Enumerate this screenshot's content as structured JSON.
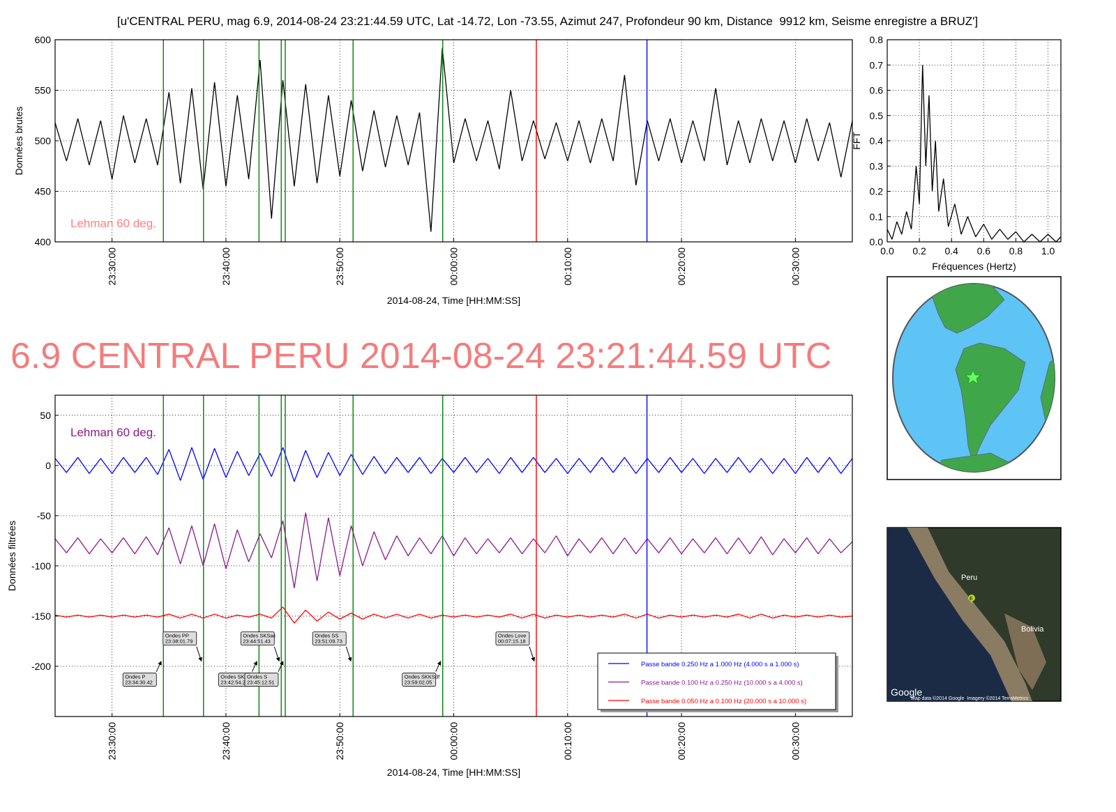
{
  "headline": "6.9 CENTRAL PERU 2014-08-24 23:21:44.59 UTC",
  "chart_data": [
    {
      "type": "line",
      "title": "[u'CENTRAL PERU, mag 6.9, 2014-08-24 23:21:44.59 UTC, Lat -14.72, Lon -73.55, Azimut 247, Profondeur 90 km, Distance  9912 km, Seisme enregistre a BRUZ']",
      "x_label": "2014-08-24, Time [HH:MM:SS]",
      "y_label": "Données brutes",
      "annotation": "Lehman 60 deg.",
      "annotation_color": "#ff8080",
      "x": [
        "23:25:00",
        "23:26:00",
        "23:27:00",
        "23:28:00",
        "23:29:00",
        "23:30:00",
        "23:31:00",
        "23:32:00",
        "23:33:00",
        "23:34:00",
        "23:35:00",
        "23:36:00",
        "23:37:00",
        "23:38:00",
        "23:39:00",
        "23:40:00",
        "23:41:00",
        "23:42:00",
        "23:43:00",
        "23:44:00",
        "23:45:00",
        "23:46:00",
        "23:47:00",
        "23:48:00",
        "23:49:00",
        "23:50:00",
        "23:51:00",
        "23:52:00",
        "23:53:00",
        "23:54:00",
        "23:55:00",
        "23:56:00",
        "23:57:00",
        "23:58:00",
        "23:59:00",
        "00:00:00",
        "00:01:00",
        "00:02:00",
        "00:03:00",
        "00:04:00",
        "00:05:00",
        "00:06:00",
        "00:07:00",
        "00:08:00",
        "00:09:00",
        "00:10:00",
        "00:11:00",
        "00:12:00",
        "00:13:00",
        "00:14:00",
        "00:15:00",
        "00:16:00",
        "00:17:00",
        "00:18:00",
        "00:19:00",
        "00:20:00",
        "00:21:00",
        "00:22:00",
        "00:23:00",
        "00:24:00",
        "00:25:00",
        "00:26:00",
        "00:27:00",
        "00:28:00",
        "00:29:00",
        "00:30:00",
        "00:31:00",
        "00:32:00",
        "00:33:00",
        "00:34:00",
        "00:35:00"
      ],
      "values": [
        518,
        480,
        522,
        476,
        520,
        462,
        525,
        478,
        522,
        476,
        548,
        458,
        552,
        452,
        558,
        455,
        545,
        462,
        580,
        423,
        560,
        455,
        556,
        458,
        545,
        465,
        540,
        470,
        530,
        474,
        525,
        476,
        528,
        410,
        592,
        478,
        522,
        480,
        520,
        472,
        550,
        480,
        520,
        482,
        518,
        480,
        520,
        478,
        522,
        480,
        565,
        456,
        520,
        480,
        522,
        478,
        520,
        480,
        552,
        476,
        520,
        478,
        522,
        480,
        520,
        478,
        522,
        480,
        518,
        464,
        520
      ],
      "color": "#000000",
      "xlim": [
        "23:25:00",
        "00:35:00"
      ],
      "xticks": [
        "23:30:00",
        "23:40:00",
        "23:50:00",
        "00:00:00",
        "00:10:00",
        "00:20:00",
        "00:30:00"
      ],
      "ylim": [
        400,
        600
      ],
      "yticks": [
        400,
        450,
        500,
        550,
        600
      ],
      "grid": true,
      "phase_lines": [
        {
          "time": "23:34:30.42",
          "color": "#008000"
        },
        {
          "time": "23:38:01.79",
          "color": "#008000"
        },
        {
          "time": "23:42:54.29",
          "color": "#008000"
        },
        {
          "time": "23:44:51.43",
          "color": "#008000"
        },
        {
          "time": "23:45:12.51",
          "color": "#008000"
        },
        {
          "time": "23:51:09.73",
          "color": "#008000"
        },
        {
          "time": "23:59:02.05",
          "color": "#008000"
        },
        {
          "time": "00:07:15.18",
          "color": "#ff0000"
        },
        {
          "time": "00:16:58",
          "color": "#0000ff"
        }
      ]
    },
    {
      "type": "line",
      "x_label": "Fréquences (Hertz)",
      "y_label": "FFT",
      "x": [
        0,
        0.03,
        0.06,
        0.09,
        0.12,
        0.15,
        0.18,
        0.2,
        0.22,
        0.24,
        0.26,
        0.28,
        0.3,
        0.32,
        0.35,
        0.38,
        0.42,
        0.46,
        0.5,
        0.55,
        0.6,
        0.65,
        0.7,
        0.75,
        0.8,
        0.85,
        0.9,
        0.95,
        1.0,
        1.05,
        1.08
      ],
      "values": [
        0.05,
        0.01,
        0.08,
        0.03,
        0.12,
        0.05,
        0.3,
        0.15,
        0.7,
        0.3,
        0.58,
        0.2,
        0.4,
        0.12,
        0.25,
        0.06,
        0.15,
        0.03,
        0.1,
        0.02,
        0.07,
        0.01,
        0.05,
        0.01,
        0.04,
        0.0,
        0.03,
        0.0,
        0.03,
        0.0,
        0.02
      ],
      "color": "#000000",
      "xlim": [
        0,
        1.08
      ],
      "xticks": [
        {
          "value": 0,
          "label": "0.0"
        },
        0.2,
        0.4,
        0.6,
        0.8,
        {
          "value": 1,
          "label": "1.0"
        }
      ],
      "ylim": [
        0,
        0.8
      ],
      "yticks": [
        {
          "value": 0,
          "label": "0.0"
        },
        0.1,
        0.2,
        0.3,
        0.4,
        0.5,
        0.6,
        0.7,
        0.8
      ],
      "grid": true
    },
    {
      "type": "line",
      "x_label": "2014-08-24, Time [HH:MM:SS]",
      "y_label": "Données filtrées",
      "annotation": "Lehman 60 deg.",
      "annotation_color": "#8b1a8b",
      "x": [
        "23:25:00",
        "23:26:00",
        "23:27:00",
        "23:28:00",
        "23:29:00",
        "23:30:00",
        "23:31:00",
        "23:32:00",
        "23:33:00",
        "23:34:00",
        "23:35:00",
        "23:36:00",
        "23:37:00",
        "23:38:00",
        "23:39:00",
        "23:40:00",
        "23:41:00",
        "23:42:00",
        "23:43:00",
        "23:44:00",
        "23:45:00",
        "23:46:00",
        "23:47:00",
        "23:48:00",
        "23:49:00",
        "23:50:00",
        "23:51:00",
        "23:52:00",
        "23:53:00",
        "23:54:00",
        "23:55:00",
        "23:56:00",
        "23:57:00",
        "23:58:00",
        "23:59:00",
        "00:00:00",
        "00:01:00",
        "00:02:00",
        "00:03:00",
        "00:04:00",
        "00:05:00",
        "00:06:00",
        "00:07:00",
        "00:08:00",
        "00:09:00",
        "00:10:00",
        "00:11:00",
        "00:12:00",
        "00:13:00",
        "00:14:00",
        "00:15:00",
        "00:16:00",
        "00:17:00",
        "00:18:00",
        "00:19:00",
        "00:20:00",
        "00:21:00",
        "00:22:00",
        "00:23:00",
        "00:24:00",
        "00:25:00",
        "00:26:00",
        "00:27:00",
        "00:28:00",
        "00:29:00",
        "00:30:00",
        "00:31:00",
        "00:32:00",
        "00:33:00",
        "00:34:00",
        "00:35:00"
      ],
      "series": [
        {
          "name": "Passe bande 0.250 Hz a 1.000 Hz (4.000 s a 1.000 s)",
          "color": "#0000ff",
          "values": [
            7,
            -7,
            8,
            -8,
            7,
            -8,
            8,
            -7,
            8,
            -9,
            16,
            -15,
            18,
            -14,
            17,
            -12,
            14,
            -10,
            12,
            -11,
            18,
            -16,
            15,
            -12,
            13,
            -10,
            11,
            -9,
            9,
            -8,
            8,
            -7,
            8,
            -8,
            7,
            -7,
            8,
            -7,
            7,
            -8,
            8,
            -7,
            8,
            -7,
            7,
            -8,
            7,
            -7,
            8,
            -7,
            8,
            -8,
            7,
            -7,
            8,
            -7,
            7,
            -8,
            7,
            -7,
            8,
            -7,
            7,
            -8,
            7,
            -8,
            8,
            -7,
            8,
            -8,
            7
          ]
        },
        {
          "name": "Passe bande 0.100 Hz a 0.250 Hz (10.000 s a 4.000 s)",
          "color": "#8b1a8b",
          "values": [
            -73,
            -87,
            -72,
            -88,
            -73,
            -87,
            -72,
            -88,
            -71,
            -89,
            -62,
            -98,
            -60,
            -100,
            -58,
            -103,
            -64,
            -96,
            -68,
            -92,
            -55,
            -122,
            -47,
            -115,
            -52,
            -110,
            -60,
            -100,
            -66,
            -94,
            -70,
            -90,
            -72,
            -88,
            -70,
            -90,
            -72,
            -88,
            -73,
            -87,
            -72,
            -88,
            -73,
            -87,
            -70,
            -90,
            -73,
            -87,
            -72,
            -88,
            -72,
            -88,
            -73,
            -87,
            -72,
            -88,
            -73,
            -87,
            -72,
            -88,
            -72,
            -88,
            -71,
            -89,
            -73,
            -87,
            -72,
            -88,
            -73,
            -87,
            -76
          ]
        },
        {
          "name": "Passe bande 0.050 Hz a 0.100 Hz (20.000 s a 10.000 s)",
          "color": "#ff0000",
          "values": [
            -149,
            -151,
            -149,
            -151,
            -149,
            -151,
            -149,
            -151,
            -149,
            -151,
            -148,
            -152,
            -148,
            -152,
            -148,
            -152,
            -149,
            -151,
            -148,
            -152,
            -141,
            -157,
            -144,
            -155,
            -146,
            -153,
            -147,
            -153,
            -148,
            -152,
            -148,
            -152,
            -148,
            -152,
            -149,
            -151,
            -149,
            -151,
            -149,
            -151,
            -148,
            -152,
            -148,
            -152,
            -149,
            -151,
            -149,
            -151,
            -149,
            -151,
            -148,
            -152,
            -148,
            -152,
            -149,
            -151,
            -149,
            -151,
            -149,
            -151,
            -148,
            -152,
            -148,
            -152,
            -149,
            -151,
            -149,
            -151,
            -149,
            -151,
            -150
          ]
        }
      ],
      "xlim": [
        "23:25:00",
        "00:35:00"
      ],
      "xticks": [
        "23:30:00",
        "23:40:00",
        "23:50:00",
        "00:00:00",
        "00:10:00",
        "00:20:00",
        "00:30:00"
      ],
      "ylim": [
        -250,
        70
      ],
      "yticks": [
        -200,
        -150,
        -100,
        -50,
        0,
        50
      ],
      "grid": true,
      "legend": "lower right",
      "phases": [
        {
          "name": "Ondes P",
          "time": "23:34:30.42",
          "color": "#008000"
        },
        {
          "name": "Ondes PP",
          "time": "23:38:01.79",
          "color": "#008000"
        },
        {
          "name": "Ondes SKIKP",
          "time": "23:42:54.29",
          "color": "#008000"
        },
        {
          "name": "Ondes SKSac",
          "time": "23:44:51.43",
          "color": "#008000"
        },
        {
          "name": "Ondes S",
          "time": "23:45:12.51",
          "color": "#008000"
        },
        {
          "name": "Ondes SS",
          "time": "23:51:09.73",
          "color": "#008000"
        },
        {
          "name": "Ondes SKKSdf",
          "time": "23:59:02.05",
          "color": "#008000"
        },
        {
          "name": "Ondes Love",
          "time": "00:07:15.18",
          "color": "#ff0000"
        },
        {
          "time": "00:16:58",
          "color": "#0000ff"
        }
      ]
    }
  ],
  "maps": {
    "satellite": {
      "labels": [
        "Peru",
        "Bolivia"
      ],
      "marker": "E",
      "logo": "Google",
      "attribution": "Map data ©2014 Google  Imagery ©2014 TerraMetrics"
    }
  }
}
